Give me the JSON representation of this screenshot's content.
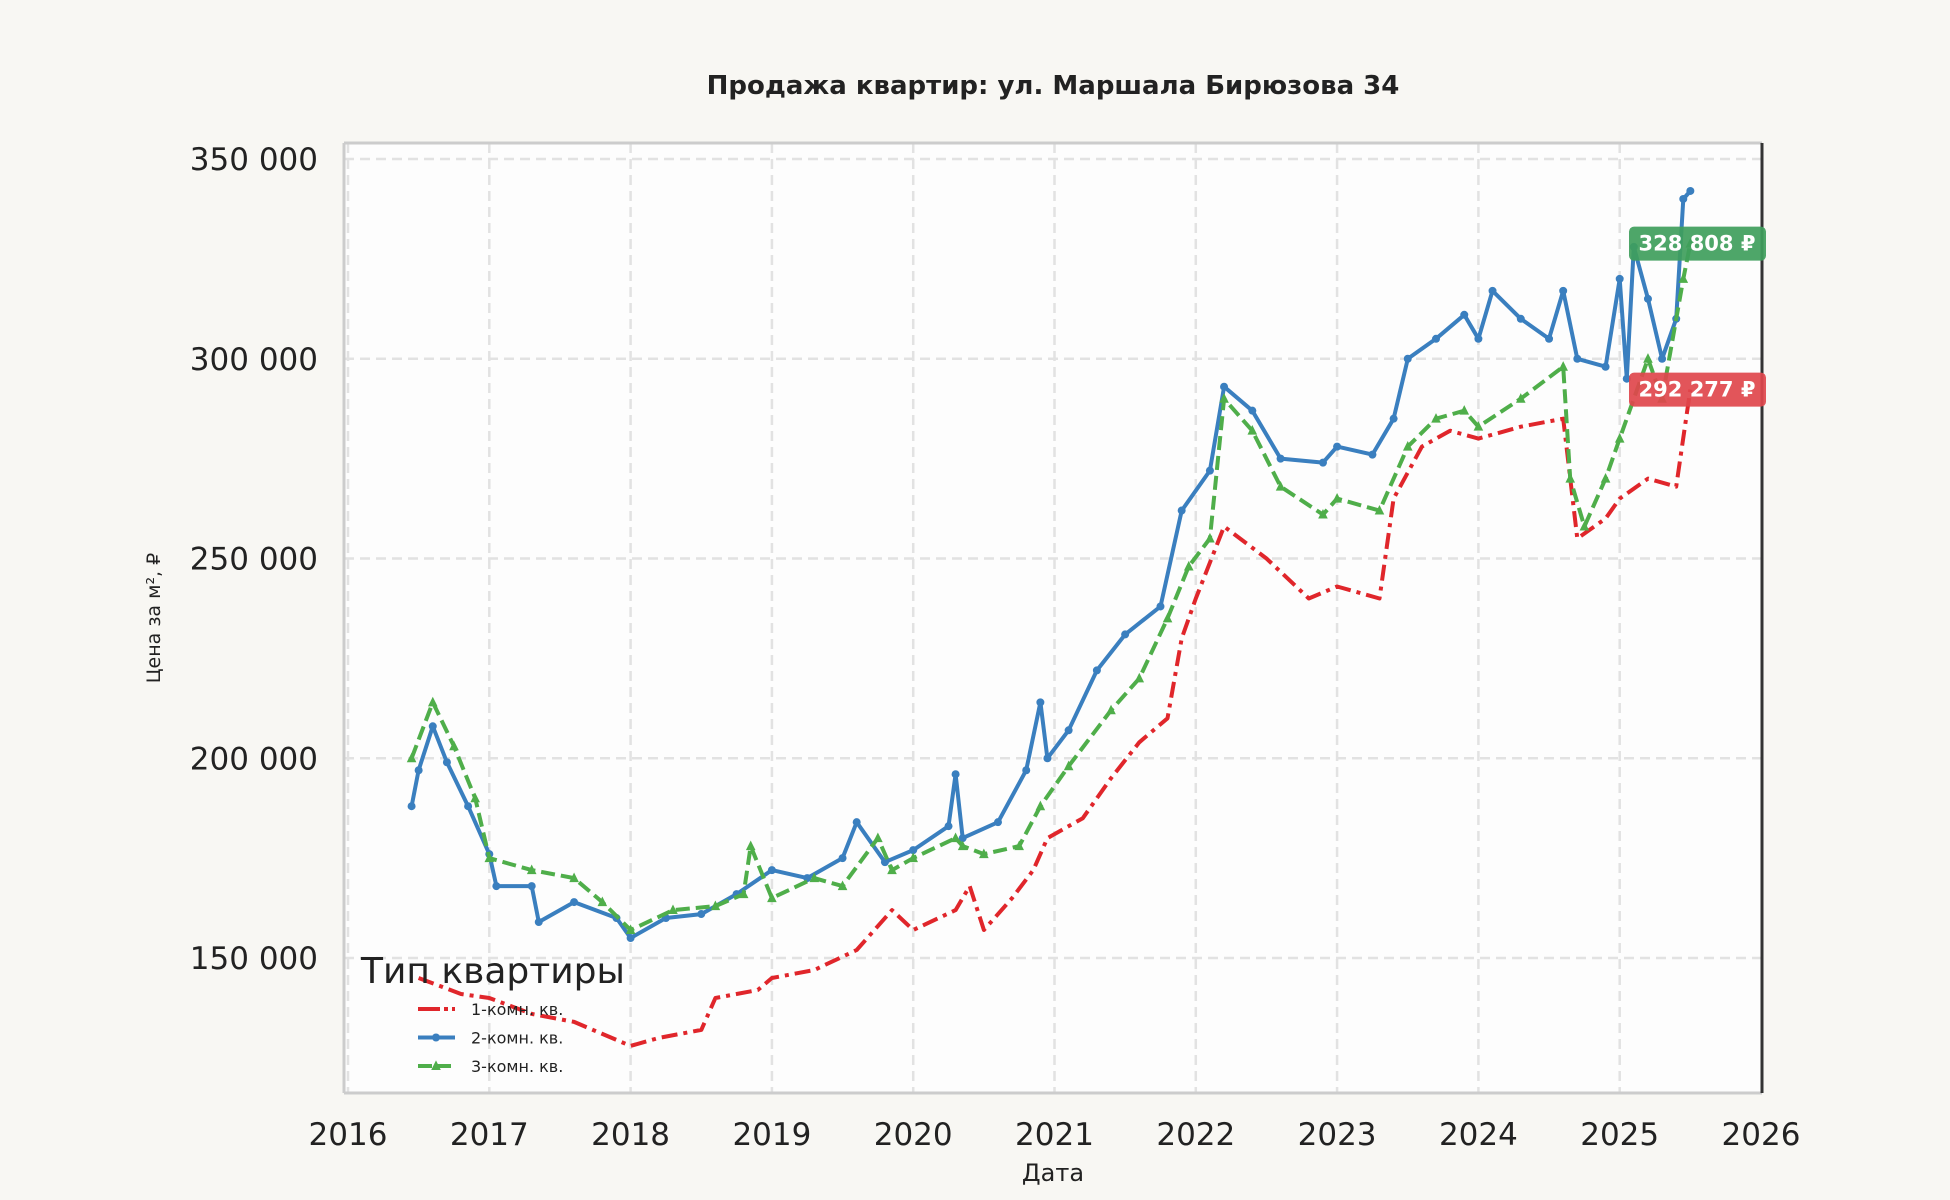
{
  "chart_data": {
    "type": "line",
    "title": "Продажа квартир: ул. Маршала Бирюзова 34",
    "xlabel": "Дата",
    "ylabel": "Цена за м², ₽",
    "xlim": [
      2016,
      2026
    ],
    "ylim": [
      115000,
      355000
    ],
    "x_ticks": [
      "2016",
      "2017",
      "2018",
      "2019",
      "2020",
      "2021",
      "2022",
      "2023",
      "2024",
      "2025",
      "2026"
    ],
    "y_ticks": [
      {
        "v": 150000,
        "label": "150 000"
      },
      {
        "v": 200000,
        "label": "200 000"
      },
      {
        "v": 250000,
        "label": "250 000"
      },
      {
        "v": 300000,
        "label": "300 000"
      },
      {
        "v": 350000,
        "label": "350 000"
      }
    ],
    "grid": true,
    "legend": {
      "title": "Тип квартиры",
      "placement": "bottom-left"
    },
    "series": [
      {
        "name": "1-комн. кв.",
        "color": "#e0262b",
        "style": "dashdot",
        "marker": "none",
        "points": [
          [
            2016.5,
            145000
          ],
          [
            2016.8,
            141000
          ],
          [
            2017.0,
            140000
          ],
          [
            2017.3,
            136000
          ],
          [
            2017.6,
            134000
          ],
          [
            2017.8,
            131000
          ],
          [
            2018.0,
            128000
          ],
          [
            2018.2,
            130000
          ],
          [
            2018.5,
            132000
          ],
          [
            2018.6,
            140000
          ],
          [
            2018.9,
            142000
          ],
          [
            2019.0,
            145000
          ],
          [
            2019.3,
            147000
          ],
          [
            2019.6,
            152000
          ],
          [
            2019.85,
            162000
          ],
          [
            2020.0,
            157000
          ],
          [
            2020.3,
            162000
          ],
          [
            2020.4,
            168000
          ],
          [
            2020.5,
            157000
          ],
          [
            2020.7,
            165000
          ],
          [
            2020.85,
            172000
          ],
          [
            2020.95,
            180000
          ],
          [
            2021.2,
            185000
          ],
          [
            2021.4,
            195000
          ],
          [
            2021.6,
            204000
          ],
          [
            2021.8,
            210000
          ],
          [
            2021.9,
            230000
          ],
          [
            2022.0,
            240000
          ],
          [
            2022.2,
            258000
          ],
          [
            2022.5,
            250000
          ],
          [
            2022.8,
            240000
          ],
          [
            2023.0,
            243000
          ],
          [
            2023.3,
            240000
          ],
          [
            2023.4,
            265000
          ],
          [
            2023.6,
            278000
          ],
          [
            2023.8,
            282000
          ],
          [
            2024.0,
            280000
          ],
          [
            2024.3,
            283000
          ],
          [
            2024.6,
            285000
          ],
          [
            2024.7,
            255000
          ],
          [
            2024.9,
            260000
          ],
          [
            2025.0,
            265000
          ],
          [
            2025.2,
            270000
          ],
          [
            2025.4,
            268000
          ],
          [
            2025.5,
            292277
          ]
        ]
      },
      {
        "name": "2-комн. кв.",
        "color": "#3a7fbf",
        "style": "solid",
        "marker": "circle",
        "points": [
          [
            2016.45,
            188000
          ],
          [
            2016.5,
            197000
          ],
          [
            2016.6,
            208000
          ],
          [
            2016.7,
            199000
          ],
          [
            2016.85,
            188000
          ],
          [
            2017.0,
            176000
          ],
          [
            2017.05,
            168000
          ],
          [
            2017.3,
            168000
          ],
          [
            2017.35,
            159000
          ],
          [
            2017.6,
            164000
          ],
          [
            2017.9,
            160000
          ],
          [
            2018.0,
            155000
          ],
          [
            2018.25,
            160000
          ],
          [
            2018.5,
            161000
          ],
          [
            2018.75,
            166000
          ],
          [
            2019.0,
            172000
          ],
          [
            2019.25,
            170000
          ],
          [
            2019.5,
            175000
          ],
          [
            2019.6,
            184000
          ],
          [
            2019.8,
            174000
          ],
          [
            2020.0,
            177000
          ],
          [
            2020.25,
            183000
          ],
          [
            2020.3,
            196000
          ],
          [
            2020.35,
            180000
          ],
          [
            2020.6,
            184000
          ],
          [
            2020.8,
            197000
          ],
          [
            2020.9,
            214000
          ],
          [
            2020.95,
            200000
          ],
          [
            2021.1,
            207000
          ],
          [
            2021.3,
            222000
          ],
          [
            2021.5,
            231000
          ],
          [
            2021.75,
            238000
          ],
          [
            2021.9,
            262000
          ],
          [
            2022.1,
            272000
          ],
          [
            2022.2,
            293000
          ],
          [
            2022.4,
            287000
          ],
          [
            2022.6,
            275000
          ],
          [
            2022.9,
            274000
          ],
          [
            2023.0,
            278000
          ],
          [
            2023.25,
            276000
          ],
          [
            2023.4,
            285000
          ],
          [
            2023.5,
            300000
          ],
          [
            2023.7,
            305000
          ],
          [
            2023.9,
            311000
          ],
          [
            2024.0,
            305000
          ],
          [
            2024.1,
            317000
          ],
          [
            2024.3,
            310000
          ],
          [
            2024.5,
            305000
          ],
          [
            2024.6,
            317000
          ],
          [
            2024.7,
            300000
          ],
          [
            2024.9,
            298000
          ],
          [
            2025.0,
            320000
          ],
          [
            2025.05,
            295000
          ],
          [
            2025.1,
            328000
          ],
          [
            2025.2,
            315000
          ],
          [
            2025.3,
            300000
          ],
          [
            2025.4,
            310000
          ],
          [
            2025.45,
            340000
          ],
          [
            2025.5,
            342000
          ]
        ]
      },
      {
        "name": "3-комн. кв.",
        "color": "#4fae4a",
        "style": "dashed",
        "marker": "triangle",
        "points": [
          [
            2016.45,
            200000
          ],
          [
            2016.6,
            214000
          ],
          [
            2016.75,
            203000
          ],
          [
            2016.9,
            190000
          ],
          [
            2017.0,
            175000
          ],
          [
            2017.3,
            172000
          ],
          [
            2017.6,
            170000
          ],
          [
            2017.8,
            164000
          ],
          [
            2018.0,
            157000
          ],
          [
            2018.3,
            162000
          ],
          [
            2018.6,
            163000
          ],
          [
            2018.8,
            166000
          ],
          [
            2018.85,
            178000
          ],
          [
            2019.0,
            165000
          ],
          [
            2019.3,
            170000
          ],
          [
            2019.5,
            168000
          ],
          [
            2019.75,
            180000
          ],
          [
            2019.85,
            172000
          ],
          [
            2020.0,
            175000
          ],
          [
            2020.3,
            180000
          ],
          [
            2020.35,
            178000
          ],
          [
            2020.5,
            176000
          ],
          [
            2020.75,
            178000
          ],
          [
            2020.9,
            188000
          ],
          [
            2021.1,
            198000
          ],
          [
            2021.4,
            212000
          ],
          [
            2021.6,
            220000
          ],
          [
            2021.8,
            235000
          ],
          [
            2021.95,
            248000
          ],
          [
            2022.1,
            255000
          ],
          [
            2022.2,
            290000
          ],
          [
            2022.4,
            282000
          ],
          [
            2022.6,
            268000
          ],
          [
            2022.9,
            261000
          ],
          [
            2023.0,
            265000
          ],
          [
            2023.3,
            262000
          ],
          [
            2023.5,
            278000
          ],
          [
            2023.7,
            285000
          ],
          [
            2023.9,
            287000
          ],
          [
            2024.0,
            283000
          ],
          [
            2024.3,
            290000
          ],
          [
            2024.6,
            298000
          ],
          [
            2024.65,
            270000
          ],
          [
            2024.75,
            258000
          ],
          [
            2024.9,
            270000
          ],
          [
            2025.0,
            280000
          ],
          [
            2025.2,
            300000
          ],
          [
            2025.3,
            290000
          ],
          [
            2025.45,
            320000
          ],
          [
            2025.5,
            328808
          ]
        ]
      }
    ],
    "annotations": [
      {
        "text": "328 808 ₽",
        "value": 328808,
        "color": "#3f9e5c"
      },
      {
        "text": "292 277 ₽",
        "value": 292277,
        "color": "#e0474c"
      }
    ]
  }
}
